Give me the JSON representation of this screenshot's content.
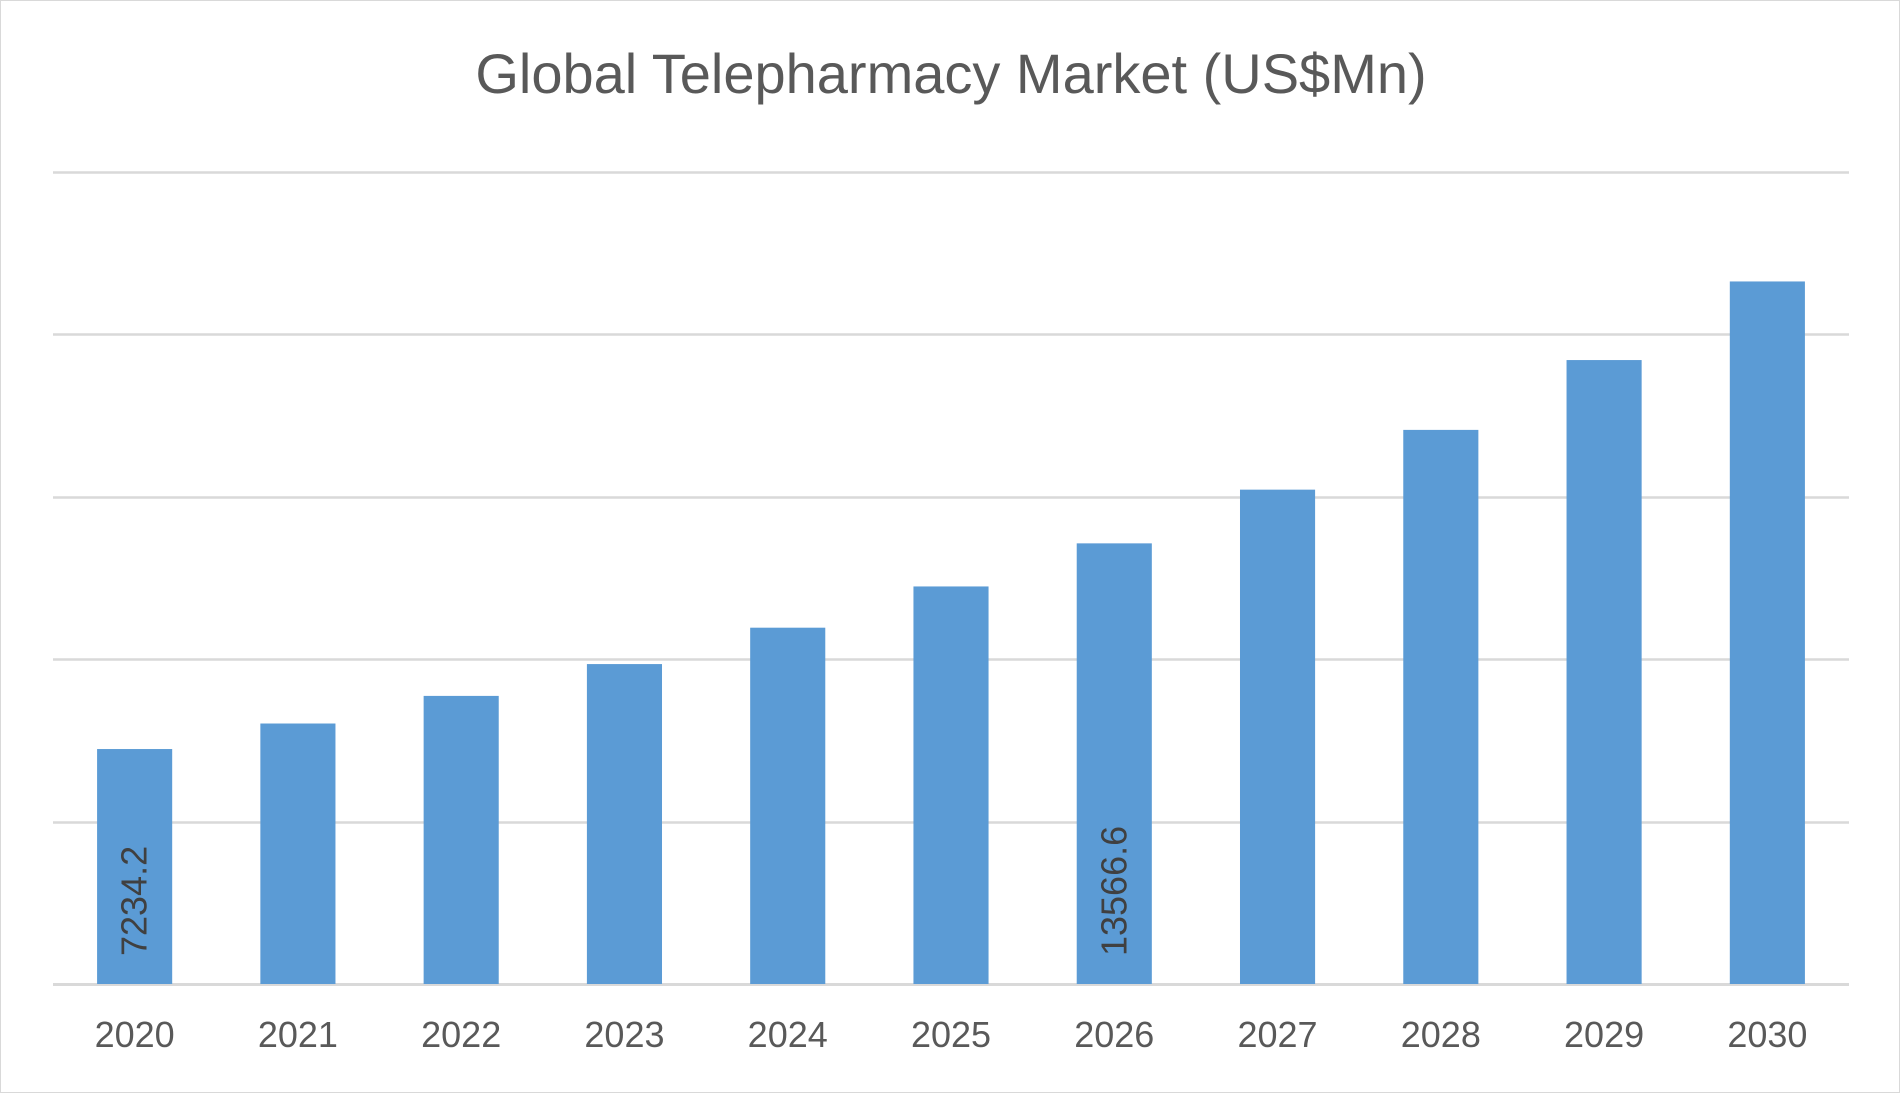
{
  "chart_data": {
    "type": "bar",
    "title": "Global Telepharmacy Market (US$Mn)",
    "xlabel": "",
    "ylabel": "",
    "categories": [
      "2020",
      "2021",
      "2022",
      "2023",
      "2024",
      "2025",
      "2026",
      "2027",
      "2028",
      "2029",
      "2030"
    ],
    "values": [
      7234.2,
      8020,
      8870,
      9850,
      10970,
      12240,
      13566.6,
      15220,
      17060,
      19210,
      21630
    ],
    "data_labels": {
      "2020": "7234.2",
      "2026": "13566.6"
    },
    "ylim": [
      0,
      25000
    ],
    "y_gridlines": [
      0,
      5000,
      10000,
      15000,
      20000,
      25000
    ],
    "y_tick_labels_shown": false,
    "grid": true,
    "legend": "none",
    "colors": {
      "bar": "#5b9bd5",
      "grid": "#d9d9d9",
      "text": "#595959"
    }
  }
}
